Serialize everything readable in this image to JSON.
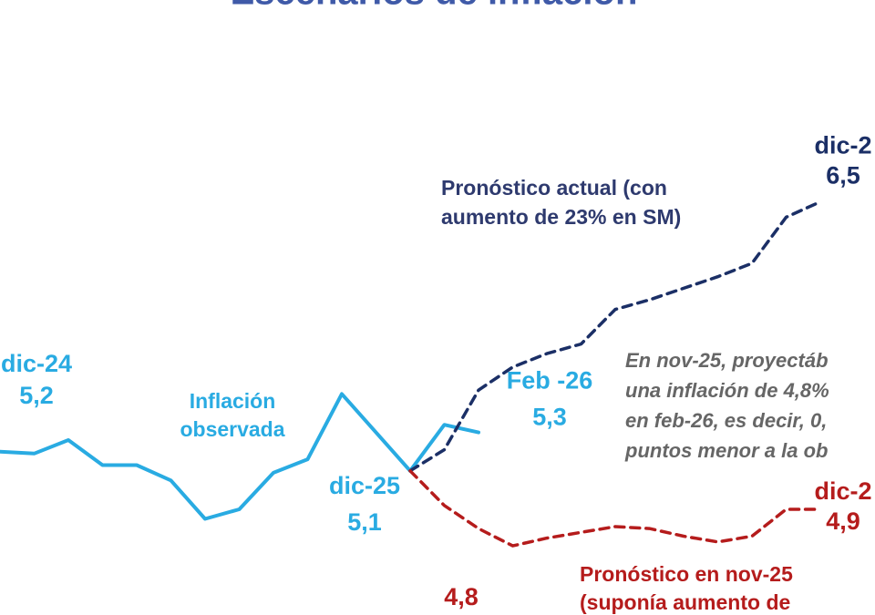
{
  "chart_data": {
    "type": "line",
    "title": "Escenarios de inflación",
    "categories": [
      null,
      null,
      null,
      null,
      null,
      null,
      null,
      null,
      null,
      null,
      null,
      null,
      null,
      null,
      null,
      null,
      null,
      null,
      null,
      null,
      null,
      null,
      null,
      null,
      null
    ],
    "ylim": [
      4.35,
      7.55
    ],
    "series": [
      {
        "name": "Inflación observada",
        "color": "#29abe2",
        "dash": false,
        "values": [
          5.2,
          5.19,
          5.26,
          5.13,
          5.13,
          5.05,
          4.85,
          4.9,
          5.09,
          5.16,
          5.5,
          5.3,
          5.1,
          5.34,
          5.3,
          null,
          null,
          null,
          null,
          null,
          null,
          null,
          null,
          null,
          null
        ],
        "point_labels": [
          "dic-24",
          null,
          null,
          null,
          null,
          null,
          null,
          null,
          null,
          null,
          null,
          null,
          "dic-25",
          null,
          "Feb -26",
          null,
          null,
          null,
          null,
          null,
          null,
          null,
          null,
          null,
          null
        ],
        "value_labels": [
          "5,2",
          null,
          null,
          null,
          null,
          null,
          null,
          null,
          null,
          null,
          null,
          null,
          "5,1",
          null,
          "5,3",
          null,
          null,
          null,
          null,
          null,
          null,
          null,
          null,
          null,
          null
        ]
      },
      {
        "name": "Pronóstico actual",
        "color": "#1b2f66",
        "dash": true,
        "values": [
          null,
          null,
          null,
          null,
          null,
          null,
          null,
          null,
          null,
          null,
          null,
          null,
          5.1,
          5.21,
          5.52,
          5.64,
          5.71,
          5.76,
          5.94,
          5.99,
          6.05,
          6.11,
          6.18,
          6.42,
          6.5
        ],
        "point_labels": [
          null,
          null,
          null,
          null,
          null,
          null,
          null,
          null,
          null,
          null,
          null,
          null,
          null,
          null,
          null,
          null,
          null,
          null,
          null,
          null,
          null,
          null,
          null,
          null,
          "dic-2"
        ],
        "value_labels": [
          null,
          null,
          null,
          null,
          null,
          null,
          null,
          null,
          null,
          null,
          null,
          null,
          null,
          null,
          null,
          null,
          null,
          null,
          null,
          null,
          null,
          null,
          null,
          null,
          "6,5"
        ]
      },
      {
        "name": "Pronóstico en nov-25",
        "color": "#b51c1c",
        "dash": true,
        "values": [
          null,
          null,
          null,
          null,
          null,
          null,
          null,
          null,
          null,
          null,
          null,
          null,
          5.1,
          4.92,
          4.8,
          4.71,
          4.75,
          4.78,
          4.81,
          4.8,
          4.76,
          4.73,
          4.76,
          4.9,
          4.9
        ],
        "point_labels": [
          null,
          null,
          null,
          null,
          null,
          null,
          null,
          null,
          null,
          null,
          null,
          null,
          null,
          null,
          null,
          null,
          null,
          null,
          null,
          null,
          null,
          null,
          null,
          null,
          "dic-2"
        ],
        "value_labels": [
          null,
          null,
          null,
          null,
          null,
          null,
          null,
          null,
          null,
          null,
          null,
          null,
          null,
          null,
          "4,8",
          null,
          null,
          null,
          null,
          null,
          null,
          null,
          null,
          null,
          "4,9"
        ]
      }
    ],
    "annotations": [
      {
        "color": "#29abe2",
        "lines": [
          "Inflación",
          "observada"
        ]
      },
      {
        "color": "#2e3a6e",
        "lines": [
          "Pronóstico actual (con",
          "aumento de 23% en SM)"
        ]
      },
      {
        "color": "#666666",
        "italic": true,
        "lines": [
          "En nov-25, proyectáb",
          "una inflación de 4,8%",
          "en feb-26, es decir, 0,",
          "puntos menor a la ob"
        ]
      },
      {
        "color": "#b51c1c",
        "lines": [
          "Pronóstico en nov-25",
          "(suponía aumento de"
        ]
      }
    ]
  }
}
